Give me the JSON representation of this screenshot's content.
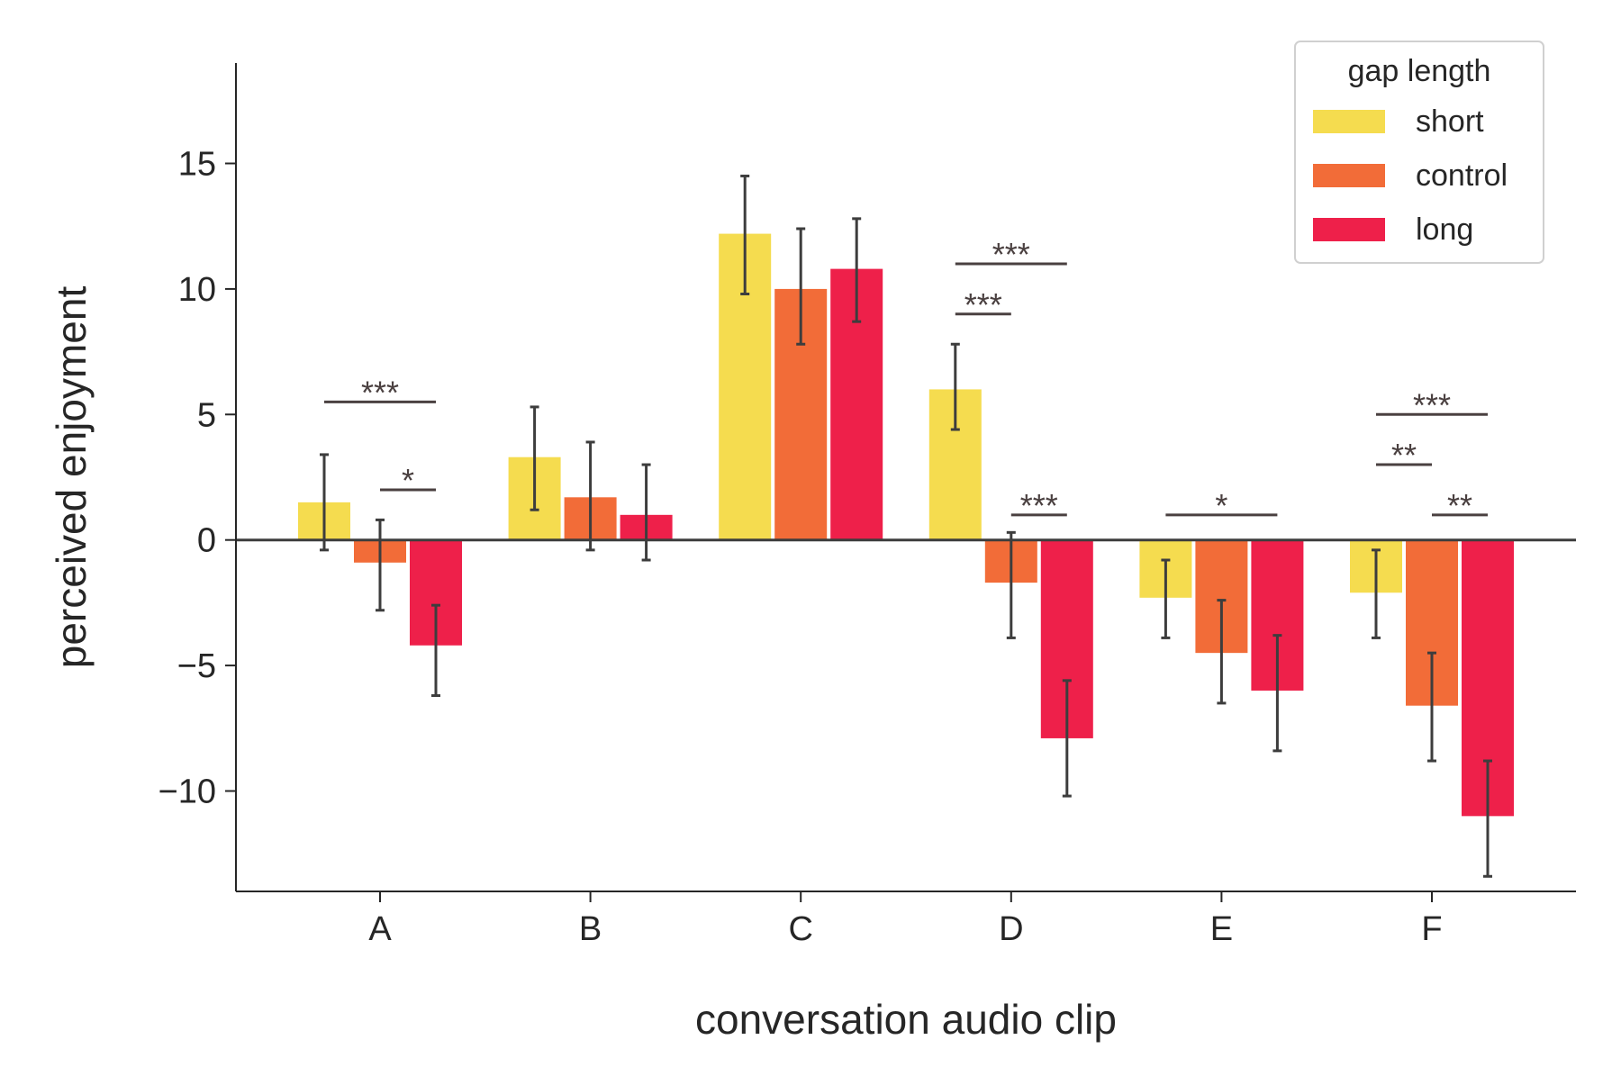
{
  "chart_data": {
    "type": "bar",
    "xlabel": "conversation audio clip",
    "ylabel": "perceived enjoyment",
    "ylim": [
      -14,
      19
    ],
    "yticks": [
      -10,
      -5,
      0,
      5,
      10,
      15
    ],
    "ytick_labels": [
      "−10",
      "−5",
      "0",
      "5",
      "10",
      "15"
    ],
    "grid": false,
    "categories": [
      "A",
      "B",
      "C",
      "D",
      "E",
      "F"
    ],
    "legend": {
      "title": "gap length",
      "placement": "top-right"
    },
    "series": [
      {
        "name": "short",
        "color": "#F5DC4F",
        "values": [
          1.5,
          3.3,
          12.2,
          6.0,
          -2.3,
          -2.1
        ],
        "err_low": [
          -0.4,
          1.2,
          9.8,
          4.4,
          -3.9,
          -3.9
        ],
        "err_high": [
          3.4,
          5.3,
          14.5,
          7.8,
          -0.8,
          -0.4
        ]
      },
      {
        "name": "control",
        "color": "#F26C38",
        "values": [
          -0.9,
          1.7,
          10.0,
          -1.7,
          -4.5,
          -6.6
        ],
        "err_low": [
          -2.8,
          -0.4,
          7.8,
          -3.9,
          -6.5,
          -8.8
        ],
        "err_high": [
          0.8,
          3.9,
          12.4,
          0.3,
          -2.4,
          -4.5
        ]
      },
      {
        "name": "long",
        "color": "#EE204A",
        "values": [
          -4.2,
          1.0,
          10.8,
          -7.9,
          -6.0,
          -11.0
        ],
        "err_low": [
          -6.2,
          -0.8,
          8.7,
          -10.2,
          -8.4,
          -13.4
        ],
        "err_high": [
          -2.6,
          3.0,
          12.8,
          -5.6,
          -3.8,
          -8.8
        ]
      }
    ],
    "significance": [
      {
        "category": "A",
        "from": "short",
        "to": "long",
        "y": 5.5,
        "label": "***"
      },
      {
        "category": "A",
        "from": "control",
        "to": "long",
        "y": 2.0,
        "label": "*"
      },
      {
        "category": "D",
        "from": "short",
        "to": "long",
        "y": 11.0,
        "label": "***"
      },
      {
        "category": "D",
        "from": "short",
        "to": "control",
        "y": 9.0,
        "label": "***"
      },
      {
        "category": "D",
        "from": "control",
        "to": "long",
        "y": 1.0,
        "label": "***"
      },
      {
        "category": "E",
        "from": "short",
        "to": "long",
        "y": 1.0,
        "label": "*"
      },
      {
        "category": "F",
        "from": "short",
        "to": "long",
        "y": 5.0,
        "label": "***"
      },
      {
        "category": "F",
        "from": "short",
        "to": "control",
        "y": 3.0,
        "label": "**"
      },
      {
        "category": "F",
        "from": "control",
        "to": "long",
        "y": 1.0,
        "label": "**"
      }
    ]
  }
}
